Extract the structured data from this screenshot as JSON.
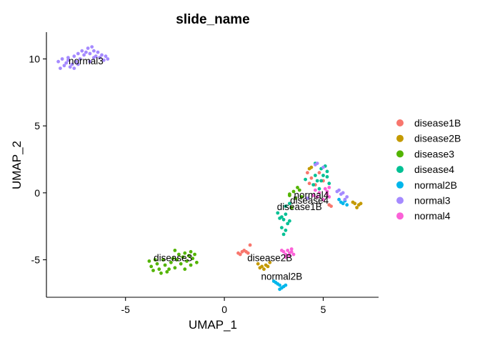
{
  "chart_data": {
    "type": "scatter",
    "title": "slide_name",
    "xlabel": "UMAP_1",
    "ylabel": "UMAP_2",
    "xlim": [
      -9.0,
      7.8
    ],
    "ylim": [
      -7.8,
      12.0
    ],
    "xticks": [
      -5,
      0,
      5
    ],
    "yticks": [
      -5,
      0,
      5,
      10
    ],
    "grid": false,
    "legend": {
      "title": "",
      "placement": "right",
      "entries": [
        "disease1B",
        "disease2B",
        "disease3",
        "disease4",
        "normal2B",
        "normal3",
        "normal4"
      ]
    },
    "series": [
      {
        "name": "disease1B",
        "color": "#F8766D",
        "points": [
          [
            0.7,
            -4.5
          ],
          [
            0.9,
            -4.4
          ],
          [
            1.0,
            -4.3
          ],
          [
            1.1,
            -4.4
          ],
          [
            0.8,
            -4.6
          ],
          [
            1.2,
            -4.5
          ],
          [
            1.3,
            -3.9
          ],
          [
            4.2,
            1.5
          ],
          [
            4.4,
            1.1
          ],
          [
            4.6,
            0.6
          ],
          [
            5.0,
            0.9
          ],
          [
            5.3,
            -0.9
          ],
          [
            5.4,
            -1.0
          ],
          [
            4.3,
            0.7
          ],
          [
            4.8,
            1.5
          ]
        ]
      },
      {
        "name": "disease2B",
        "color": "#C49A00",
        "points": [
          [
            1.7,
            -5.3
          ],
          [
            1.9,
            -5.5
          ],
          [
            2.0,
            -5.7
          ],
          [
            1.8,
            -5.6
          ],
          [
            2.1,
            -5.4
          ],
          [
            2.3,
            -5.2
          ],
          [
            2.2,
            -5.5
          ],
          [
            6.6,
            -0.8
          ],
          [
            6.8,
            -0.9
          ],
          [
            6.7,
            -1.1
          ],
          [
            6.9,
            -0.8
          ],
          [
            6.5,
            -0.7
          ],
          [
            4.3,
            1.8
          ],
          [
            4.4,
            1.9
          ]
        ]
      },
      {
        "name": "disease3",
        "color": "#53B400",
        "points": [
          [
            -3.8,
            -5.1
          ],
          [
            -3.7,
            -5.5
          ],
          [
            -3.6,
            -5.8
          ],
          [
            -3.4,
            -5.3
          ],
          [
            -3.3,
            -5.7
          ],
          [
            -3.1,
            -5.0
          ],
          [
            -3.0,
            -5.4
          ],
          [
            -2.9,
            -5.9
          ],
          [
            -2.7,
            -5.2
          ],
          [
            -2.6,
            -4.9
          ],
          [
            -2.5,
            -5.6
          ],
          [
            -2.4,
            -5.0
          ],
          [
            -2.3,
            -4.6
          ],
          [
            -2.2,
            -5.3
          ],
          [
            -2.1,
            -4.8
          ],
          [
            -2.0,
            -4.5
          ],
          [
            -1.9,
            -5.1
          ],
          [
            -1.8,
            -4.7
          ],
          [
            -1.7,
            -5.4
          ],
          [
            -1.6,
            -4.9
          ],
          [
            -1.5,
            -4.6
          ],
          [
            -1.4,
            -5.2
          ],
          [
            -2.8,
            -5.7
          ],
          [
            -3.5,
            -5.0
          ],
          [
            -2.0,
            -5.7
          ],
          [
            -1.7,
            -4.4
          ],
          [
            -2.5,
            -4.3
          ],
          [
            -3.2,
            -6.0
          ],
          [
            3.4,
            -1.1
          ],
          [
            3.6,
            -0.4
          ],
          [
            3.8,
            0.2
          ],
          [
            3.5,
            0.1
          ],
          [
            3.9,
            -0.3
          ],
          [
            3.7,
            0.4
          ],
          [
            3.3,
            -0.2
          ],
          [
            3.3,
            -0.1
          ]
        ]
      },
      {
        "name": "disease4",
        "color": "#00C094",
        "points": [
          [
            2.7,
            -1.5
          ],
          [
            2.9,
            -1.8
          ],
          [
            3.0,
            -2.0
          ],
          [
            3.1,
            -1.6
          ],
          [
            3.2,
            -2.3
          ],
          [
            2.9,
            -2.6
          ],
          [
            3.1,
            -2.8
          ],
          [
            3.0,
            -3.1
          ],
          [
            3.3,
            -2.1
          ],
          [
            2.8,
            -1.9
          ],
          [
            4.5,
            0.6
          ],
          [
            4.7,
            0.9
          ],
          [
            5.0,
            1.3
          ],
          [
            4.8,
            0.3
          ],
          [
            4.9,
            1.8
          ],
          [
            5.1,
            2.0
          ],
          [
            5.2,
            1.6
          ],
          [
            5.3,
            0.7
          ],
          [
            4.6,
            1.3
          ],
          [
            4.9,
            0.9
          ],
          [
            4.1,
            1.0
          ],
          [
            4.6,
            2.2
          ],
          [
            5.2,
            1.2
          ],
          [
            3.1,
            -1.0
          ],
          [
            3.3,
            -0.8
          ]
        ]
      },
      {
        "name": "normal2B",
        "color": "#00B6EB",
        "points": [
          [
            2.5,
            -6.6
          ],
          [
            2.7,
            -6.8
          ],
          [
            2.8,
            -6.9
          ],
          [
            2.9,
            -7.1
          ],
          [
            3.0,
            -7.0
          ],
          [
            2.6,
            -6.7
          ],
          [
            2.8,
            -7.2
          ],
          [
            3.1,
            -6.9
          ],
          [
            5.9,
            -0.7
          ],
          [
            6.0,
            -0.8
          ],
          [
            6.1,
            -0.6
          ],
          [
            6.2,
            -0.9
          ],
          [
            5.8,
            -0.5
          ]
        ]
      },
      {
        "name": "normal3",
        "color": "#A58AFF",
        "points": [
          [
            -8.4,
            9.8
          ],
          [
            -8.2,
            10.0
          ],
          [
            -8.1,
            9.5
          ],
          [
            -8.0,
            9.7
          ],
          [
            -7.9,
            9.9
          ],
          [
            -7.8,
            9.4
          ],
          [
            -7.7,
            9.6
          ],
          [
            -7.6,
            10.2
          ],
          [
            -7.5,
            9.8
          ],
          [
            -7.4,
            10.4
          ],
          [
            -7.3,
            10.0
          ],
          [
            -7.2,
            10.6
          ],
          [
            -7.1,
            10.3
          ],
          [
            -7.0,
            10.5
          ],
          [
            -6.9,
            10.8
          ],
          [
            -6.8,
            10.4
          ],
          [
            -6.7,
            10.9
          ],
          [
            -6.6,
            10.6
          ],
          [
            -6.5,
            10.2
          ],
          [
            -6.4,
            10.5
          ],
          [
            -6.3,
            10.1
          ],
          [
            -6.2,
            10.3
          ],
          [
            -6.1,
            9.9
          ],
          [
            -6.0,
            10.2
          ],
          [
            -5.9,
            10.0
          ],
          [
            -6.6,
            10.1
          ],
          [
            -7.6,
            9.3
          ],
          [
            -8.3,
            9.3
          ],
          [
            -7.9,
            10.1
          ],
          [
            -6.8,
            9.8
          ],
          [
            -7.4,
            9.6
          ],
          [
            4.6,
            2.1
          ],
          [
            4.7,
            2.2
          ],
          [
            5.0,
            1.9
          ],
          [
            5.8,
            0.2
          ],
          [
            6.0,
            0.0
          ],
          [
            6.2,
            -0.3
          ],
          [
            5.9,
            -0.1
          ],
          [
            5.7,
            0.1
          ],
          [
            6.1,
            -0.5
          ],
          [
            4.2,
            -0.4
          ]
        ]
      },
      {
        "name": "normal4",
        "color": "#FB61D7",
        "points": [
          [
            3.0,
            -4.4
          ],
          [
            3.1,
            -4.6
          ],
          [
            3.2,
            -4.3
          ],
          [
            3.3,
            -4.5
          ],
          [
            3.4,
            -4.4
          ],
          [
            3.5,
            -4.6
          ],
          [
            3.1,
            -4.8
          ],
          [
            3.3,
            -4.7
          ],
          [
            2.9,
            -4.3
          ],
          [
            3.4,
            -4.2
          ],
          [
            4.6,
            0.2
          ],
          [
            4.8,
            0.0
          ],
          [
            5.1,
            0.3
          ],
          [
            5.2,
            -0.1
          ],
          [
            4.7,
            -0.3
          ],
          [
            5.0,
            -0.5
          ],
          [
            5.3,
            0.4
          ],
          [
            4.5,
            -0.2
          ],
          [
            5.2,
            0.1
          ],
          [
            5.3,
            -0.3
          ]
        ]
      }
    ],
    "cluster_labels": [
      {
        "text": "normal3",
        "x": -7.0,
        "y": 9.6
      },
      {
        "text": "disease3",
        "x": -2.6,
        "y": -5.1
      },
      {
        "text": "disease2B",
        "x": 2.3,
        "y": -5.1
      },
      {
        "text": "normal2B",
        "x": 2.9,
        "y": -6.5
      },
      {
        "text": "normal4",
        "x": 4.4,
        "y": -0.4
      },
      {
        "text": "disease4",
        "x": 4.3,
        "y": -0.8
      },
      {
        "text": "disease1B",
        "x": 3.8,
        "y": -1.3
      }
    ]
  }
}
